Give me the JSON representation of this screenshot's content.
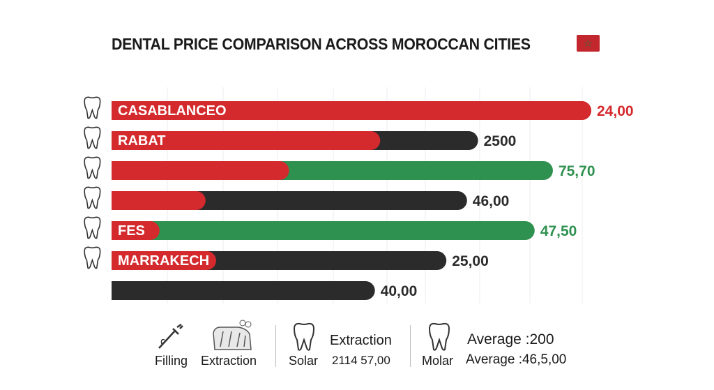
{
  "title": "DENTAL PRICE COMPARISON ACROSS MOROCCAN CITIES",
  "flag_icon": "morocco-flag-icon",
  "colors": {
    "red": "#d42a2e",
    "dark": "#2b2b2b",
    "green": "#2f9150",
    "grid": "#eeeeee"
  },
  "chart_data": {
    "type": "bar",
    "orientation": "horizontal",
    "title": "DENTAL PRICE COMPARISON ACROSS MOROCCAN CITIES",
    "grid": true,
    "rows": [
      {
        "label": "CASABLANCEO",
        "value_label": "24,00",
        "label_color": "red",
        "total_fraction": 1.0,
        "red_fraction": 1.0,
        "rest_color": "red",
        "icon": "tooth-icon"
      },
      {
        "label": "RABAT",
        "value_label": "2500",
        "label_color": "dark",
        "total_fraction": 0.764,
        "red_fraction": 0.56,
        "rest_color": "dark",
        "icon": "tooth-icon"
      },
      {
        "label": "",
        "value_label": "75,70",
        "label_color": "green",
        "total_fraction": 0.92,
        "red_fraction": 0.37,
        "rest_color": "green",
        "icon": "tooth-icon"
      },
      {
        "label": "",
        "value_label": "46,00",
        "label_color": "dark",
        "total_fraction": 0.741,
        "red_fraction": 0.196,
        "rest_color": "dark",
        "icon": "tooth-icon"
      },
      {
        "label": "FES",
        "value_label": "47,50",
        "label_color": "green",
        "total_fraction": 0.882,
        "red_fraction": 0.1,
        "rest_color": "green",
        "icon": "tooth-icon"
      },
      {
        "label": "MARRAKECH",
        "value_label": "25,00",
        "label_color": "dark",
        "total_fraction": 0.698,
        "red_fraction": 0.218,
        "rest_color": "dark",
        "icon": "tooth-icon"
      },
      {
        "label": "",
        "value_label": "40,00",
        "label_color": "dark",
        "total_fraction": 0.549,
        "red_fraction": 0,
        "rest_color": "dark",
        "icon": ""
      }
    ]
  },
  "legend": {
    "filling": {
      "icon": "syringe-icon",
      "label": "Filling"
    },
    "extraction": {
      "icon": "teeth-extraction-icon",
      "label": "Extraction"
    },
    "solar": {
      "icon": "tooth-icon",
      "label": "Solar",
      "heading": "Extraction",
      "value": "2114 57,00"
    },
    "molar": {
      "icon": "tooth-icon",
      "label": "Molar",
      "line1": "Average :200",
      "line2": "Average :46,5,00"
    }
  }
}
